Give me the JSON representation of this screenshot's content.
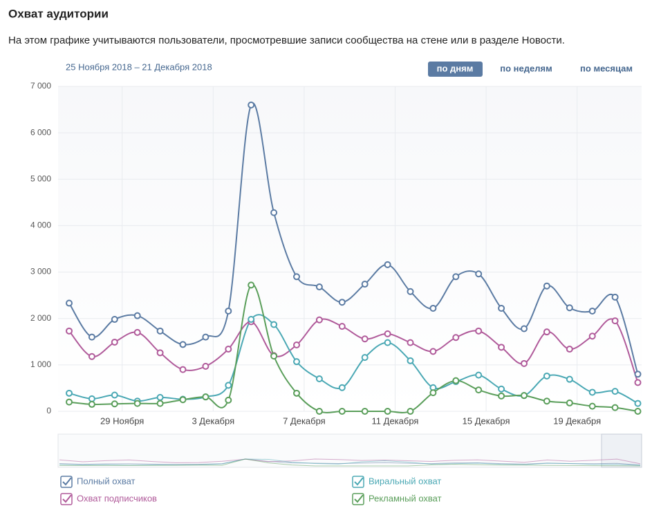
{
  "header": {
    "title": "Охват аудитории",
    "description": "На этом графике учитываются пользователи, просмотревшие записи сообщества на стене или в разделе Новости."
  },
  "period": "25 Ноября 2018 – 21 Декабря 2018",
  "buttons": [
    "по дням",
    "по неделям",
    "по месяцам"
  ],
  "chart_data": {
    "type": "line",
    "categories": [
      null,
      null,
      null,
      "29 Ноября",
      null,
      null,
      null,
      "3 Декабря",
      null,
      null,
      null,
      "7 Декабря",
      null,
      null,
      null,
      "11 Декабря",
      null,
      null,
      null,
      "15 Декабря",
      null,
      null,
      null,
      "19 Декабря",
      null,
      null
    ],
    "series": [
      {
        "name": "Полный охват",
        "color": "#5b7ba3",
        "values": [
          2330,
          1600,
          1980,
          2060,
          1730,
          1440,
          1600,
          2160,
          6600,
          4280,
          2900,
          2680,
          2350,
          2740,
          3160,
          2580,
          2220,
          2900,
          2960,
          2220,
          1780,
          2700,
          2230,
          2160,
          2460,
          800
        ]
      },
      {
        "name": "Охват подписчиков",
        "color": "#b05a9a",
        "values": [
          1730,
          1180,
          1490,
          1700,
          1260,
          900,
          970,
          1340,
          1930,
          1200,
          1430,
          1970,
          1830,
          1560,
          1670,
          1480,
          1290,
          1590,
          1730,
          1380,
          1030,
          1710,
          1340,
          1620,
          1950,
          620
        ]
      },
      {
        "name": "Виральный охват",
        "color": "#4aa8b4",
        "values": [
          390,
          270,
          350,
          220,
          300,
          260,
          310,
          560,
          1980,
          1870,
          1070,
          700,
          510,
          1160,
          1480,
          1090,
          510,
          640,
          780,
          480,
          340,
          760,
          690,
          410,
          430,
          170
        ]
      },
      {
        "name": "Рекламный охват",
        "color": "#5a9e5a",
        "values": [
          200,
          150,
          160,
          170,
          170,
          250,
          310,
          240,
          2720,
          1190,
          390,
          0,
          0,
          0,
          0,
          0,
          400,
          660,
          460,
          330,
          340,
          220,
          180,
          110,
          80,
          0
        ]
      }
    ],
    "ylim": [
      0,
      7000
    ],
    "yticks": [
      0,
      {
        "value": 1000,
        "label": "1 000"
      },
      {
        "value": 2000,
        "label": "2 000"
      },
      {
        "value": 3000,
        "label": "3 000"
      },
      {
        "value": 4000,
        "label": "4 000"
      },
      {
        "value": 5000,
        "label": "5 000"
      },
      {
        "value": 6000,
        "label": "6 000"
      },
      {
        "value": 7000,
        "label": "7 000"
      }
    ],
    "grid": true
  }
}
